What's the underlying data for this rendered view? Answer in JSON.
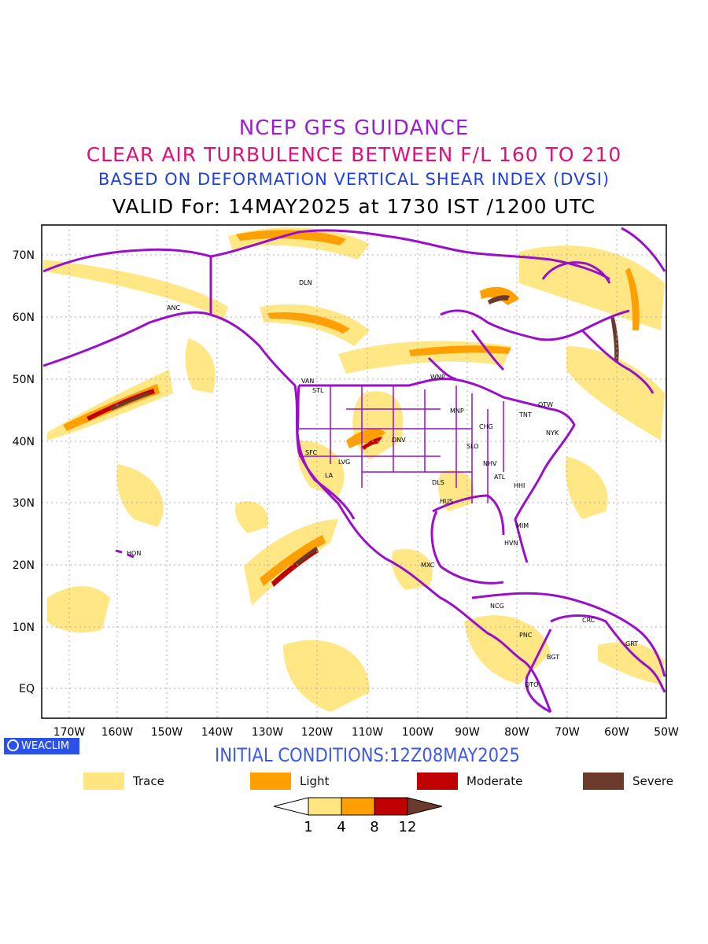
{
  "titles": {
    "line1": "NCEP GFS GUIDANCE",
    "line2": "CLEAR AIR TURBULENCE BETWEEN F/L 160 TO 210",
    "line3": "BASED ON DEFORMATION VERTICAL SHEAR INDEX (DVSI)",
    "line4": "VALID For: 14MAY2025 at 1730 IST /1200 UTC"
  },
  "map": {
    "lon_labels": [
      "170W",
      "160W",
      "150W",
      "140W",
      "130W",
      "120W",
      "110W",
      "100W",
      "90W",
      "80W",
      "70W",
      "60W",
      "50W"
    ],
    "lat_labels": [
      "70N",
      "60N",
      "50N",
      "40N",
      "30N",
      "20N",
      "10N",
      "EQ"
    ],
    "stations": [
      {
        "id": "DLN"
      },
      {
        "id": "ANC"
      },
      {
        "id": "VAN"
      },
      {
        "id": "STL"
      },
      {
        "id": "WNP"
      },
      {
        "id": "OTW"
      },
      {
        "id": "MNP"
      },
      {
        "id": "TNT"
      },
      {
        "id": "CHG"
      },
      {
        "id": "NYK"
      },
      {
        "id": "DNV"
      },
      {
        "id": "SFC"
      },
      {
        "id": "LVG"
      },
      {
        "id": "SLO"
      },
      {
        "id": "LA"
      },
      {
        "id": "NHV"
      },
      {
        "id": "ATL"
      },
      {
        "id": "DLS"
      },
      {
        "id": "HHI"
      },
      {
        "id": "HUS"
      },
      {
        "id": "MIM"
      },
      {
        "id": "HON"
      },
      {
        "id": "HVN"
      },
      {
        "id": "MXC"
      },
      {
        "id": "NCG"
      },
      {
        "id": "CRC"
      },
      {
        "id": "PNC"
      },
      {
        "id": "GRT"
      },
      {
        "id": "BGT"
      },
      {
        "id": "QTO"
      }
    ],
    "colors": {
      "coast": "#9a10c8",
      "trace": "#ffe680",
      "light": "#ffa000",
      "moderate": "#c00000",
      "severe": "#6b3a2a"
    }
  },
  "init_conditions": "INITIAL CONDITIONS:12Z08MAY2025",
  "brand": "WEACLIM",
  "legend": [
    {
      "label": "Trace",
      "color": "#ffe680"
    },
    {
      "label": "Light",
      "color": "#ffa000"
    },
    {
      "label": "Moderate",
      "color": "#c00000"
    },
    {
      "label": "Severe",
      "color": "#6b3a2a"
    }
  ],
  "colorbar": {
    "ticks": [
      "1",
      "4",
      "8",
      "12"
    ],
    "colors": [
      "#ffffff",
      "#ffe680",
      "#ffa000",
      "#c00000",
      "#6b3a2a"
    ]
  }
}
